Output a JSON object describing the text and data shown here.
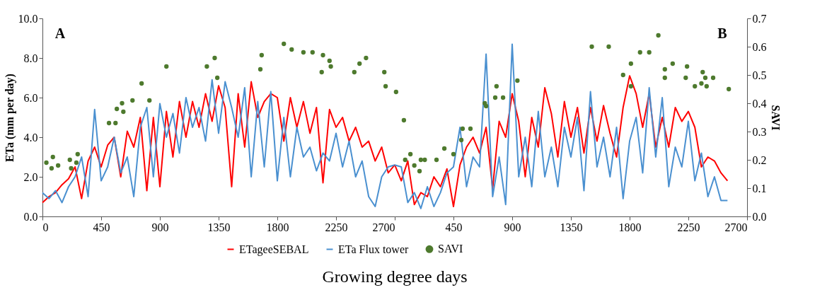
{
  "chart_data": [
    {
      "type": "line",
      "xlabel": "Growing degree days",
      "ylabel": "ETa (mm per day)",
      "annotations": [
        "A"
      ],
      "xlim": [
        0,
        2700
      ],
      "xticks": [
        0,
        450,
        900,
        1350,
        1800,
        2250,
        2700
      ],
      "ylim": [
        0,
        10
      ],
      "yticks": [
        {
          "value": 0,
          "label": "0.0"
        },
        {
          "value": 2,
          "label": "2.0"
        },
        {
          "value": 4,
          "label": "4.0"
        },
        {
          "value": 6,
          "label": "6.0"
        },
        {
          "value": 8,
          "label": "8.0"
        },
        {
          "value": 10,
          "label": "10.0"
        }
      ],
      "y2lim": [
        0,
        0.7
      ],
      "grid": false,
      "legend": "bottom",
      "x": [
        0,
        50,
        100,
        150,
        200,
        250,
        300,
        350,
        400,
        450,
        500,
        550,
        600,
        650,
        700,
        750,
        800,
        850,
        900,
        950,
        1000,
        1050,
        1100,
        1150,
        1200,
        1250,
        1300,
        1350,
        1400,
        1450,
        1500,
        1550,
        1600,
        1650,
        1700,
        1750,
        1800,
        1850,
        1900,
        1950,
        2000,
        2050,
        2100,
        2150,
        2200,
        2250,
        2300,
        2350,
        2400,
        2450,
        2500,
        2550,
        2600,
        2650,
        2700
      ],
      "series": [
        {
          "name": "ETageeSEBAL",
          "color": "#ff0000",
          "values": [
            0.7,
            1.0,
            1.2,
            1.6,
            1.9,
            2.5,
            0.9,
            2.8,
            3.5,
            2.5,
            3.6,
            4.0,
            2.0,
            4.3,
            3.5,
            5.0,
            1.3,
            5.0,
            1.5,
            5.3,
            3.0,
            5.8,
            4.0,
            5.8,
            4.5,
            6.2,
            4.8,
            6.6,
            5.5,
            1.5,
            6.2,
            3.5,
            6.8,
            5.0,
            5.8,
            6.2,
            6.0,
            3.8,
            6.0,
            4.5,
            5.8,
            4.2,
            5.5,
            1.7,
            5.4,
            4.5,
            5.0,
            3.8,
            4.5,
            3.5,
            3.8,
            2.8,
            3.5,
            2.2,
            2.6
          ]
        },
        {
          "name": "ETa Flux tower",
          "color": "#4a90d0",
          "values": [
            1.2,
            0.9,
            1.3,
            0.7,
            1.5,
            2.0,
            3.0,
            1.0,
            5.4,
            1.8,
            2.5,
            4.0,
            2.2,
            3.0,
            1.0,
            4.5,
            5.5,
            2.0,
            5.7,
            4.0,
            5.2,
            3.2,
            6.0,
            4.5,
            5.5,
            3.8,
            6.9,
            4.2,
            6.8,
            5.5,
            4.0,
            6.5,
            2.0,
            5.8,
            2.5,
            6.3,
            1.8,
            5.0,
            2.0,
            4.5,
            3.0,
            3.5,
            2.3,
            3.2,
            2.8,
            4.2,
            2.5,
            3.8,
            2.0,
            2.8,
            1.0,
            0.5,
            2.0,
            2.5,
            2.6
          ]
        },
        {
          "name": "SAVI",
          "type": "scatter",
          "axis": "y2",
          "marker": "circle",
          "color": "#4e7a2e",
          "x": [
            30,
            80,
            70,
            120,
            210,
            220,
            270,
            260,
            510,
            560,
            570,
            610,
            620,
            690,
            760,
            820,
            950,
            1260,
            1320,
            1340,
            1670,
            1680,
            1850,
            1910,
            2000,
            2070,
            2150,
            2140,
            2200,
            2210,
            2390,
            2430,
            2480,
            2620,
            2630
          ],
          "values": [
            0.19,
            0.21,
            0.17,
            0.18,
            0.2,
            0.17,
            0.22,
            0.19,
            0.33,
            0.33,
            0.38,
            0.4,
            0.37,
            0.41,
            0.47,
            0.41,
            0.53,
            0.53,
            0.56,
            0.49,
            0.52,
            0.57,
            0.61,
            0.59,
            0.58,
            0.58,
            0.57,
            0.51,
            0.55,
            0.53,
            0.51,
            0.54,
            0.56,
            0.51,
            0.46
          ]
        }
      ]
    },
    {
      "type": "line",
      "y2label": "SAVI",
      "annotations": [
        "B"
      ],
      "xlim": [
        0,
        2700
      ],
      "xticks": [
        450,
        900,
        1350,
        1800,
        2250,
        2700
      ],
      "ylim": [
        0,
        10
      ],
      "y2lim": [
        0,
        0.7
      ],
      "y2ticks": [
        {
          "value": 0,
          "label": "0.0"
        },
        0.1,
        0.2,
        0.3,
        0.4,
        0.5,
        0.6,
        0.7
      ],
      "grid": false,
      "x": [
        0,
        50,
        100,
        150,
        200,
        250,
        300,
        350,
        400,
        450,
        500,
        550,
        600,
        650,
        700,
        750,
        800,
        850,
        900,
        950,
        1000,
        1050,
        1100,
        1150,
        1200,
        1250,
        1300,
        1350,
        1400,
        1450,
        1500,
        1550,
        1600,
        1650,
        1700,
        1750,
        1800,
        1850,
        1900,
        1950,
        2000,
        2050,
        2100,
        2150,
        2200,
        2250,
        2300,
        2350,
        2400,
        2450,
        2500,
        2550
      ],
      "series": [
        {
          "color": "#ff0000",
          "values": [
            2.6,
            1.8,
            2.8,
            0.6,
            1.2,
            1.0,
            2.0,
            1.5,
            2.4,
            0.5,
            2.6,
            3.5,
            4.0,
            3.2,
            4.5,
            1.4,
            4.8,
            4.0,
            6.2,
            4.8,
            2.0,
            5.0,
            3.5,
            6.5,
            5.2,
            3.0,
            5.8,
            4.0,
            5.5,
            3.2,
            5.5,
            3.8,
            5.6,
            4.2,
            3.0,
            5.5,
            7.1,
            6.2,
            4.5,
            6.2,
            3.5,
            5.0,
            3.5,
            5.5,
            4.8,
            5.3,
            4.5,
            2.5,
            3.0,
            2.8,
            2.2,
            1.8
          ]
        },
        {
          "color": "#4a90d0",
          "values": [
            2.6,
            2.5,
            0.7,
            1.2,
            0.4,
            1.5,
            0.5,
            1.2,
            2.2,
            2.5,
            4.5,
            1.5,
            3.0,
            2.5,
            8.2,
            1.0,
            3.0,
            0.6,
            8.7,
            2.0,
            4.0,
            1.5,
            5.3,
            2.0,
            3.5,
            1.5,
            4.5,
            3.0,
            5.0,
            1.3,
            6.3,
            2.5,
            4.0,
            2.0,
            4.5,
            0.9,
            3.8,
            5.0,
            2.2,
            6.5,
            3.0,
            6.0,
            1.5,
            3.5,
            2.5,
            4.8,
            1.8,
            3.2,
            1.0,
            2.0,
            0.8,
            0.8
          ]
        },
        {
          "type": "scatter",
          "axis": "y2",
          "marker": "circle",
          "color": "#4e7a2e",
          "x": [
            10,
            70,
            80,
            120,
            150,
            190,
            200,
            230,
            320,
            380,
            450,
            510,
            520,
            580,
            690,
            700,
            770,
            780,
            830,
            940,
            1510,
            1640,
            1750,
            1810,
            1810,
            1880,
            1950,
            2020,
            2070,
            2070,
            2130,
            2240,
            2230,
            2300,
            2360,
            2350,
            2380,
            2390,
            2440,
            2560
          ],
          "values": [
            0.44,
            0.34,
            0.2,
            0.22,
            0.18,
            0.16,
            0.2,
            0.2,
            0.2,
            0.24,
            0.22,
            0.27,
            0.31,
            0.31,
            0.4,
            0.39,
            0.42,
            0.46,
            0.42,
            0.48,
            0.6,
            0.6,
            0.5,
            0.46,
            0.54,
            0.58,
            0.58,
            0.64,
            0.52,
            0.49,
            0.54,
            0.53,
            0.49,
            0.46,
            0.51,
            0.47,
            0.49,
            0.46,
            0.49,
            0.45
          ]
        }
      ]
    }
  ]
}
